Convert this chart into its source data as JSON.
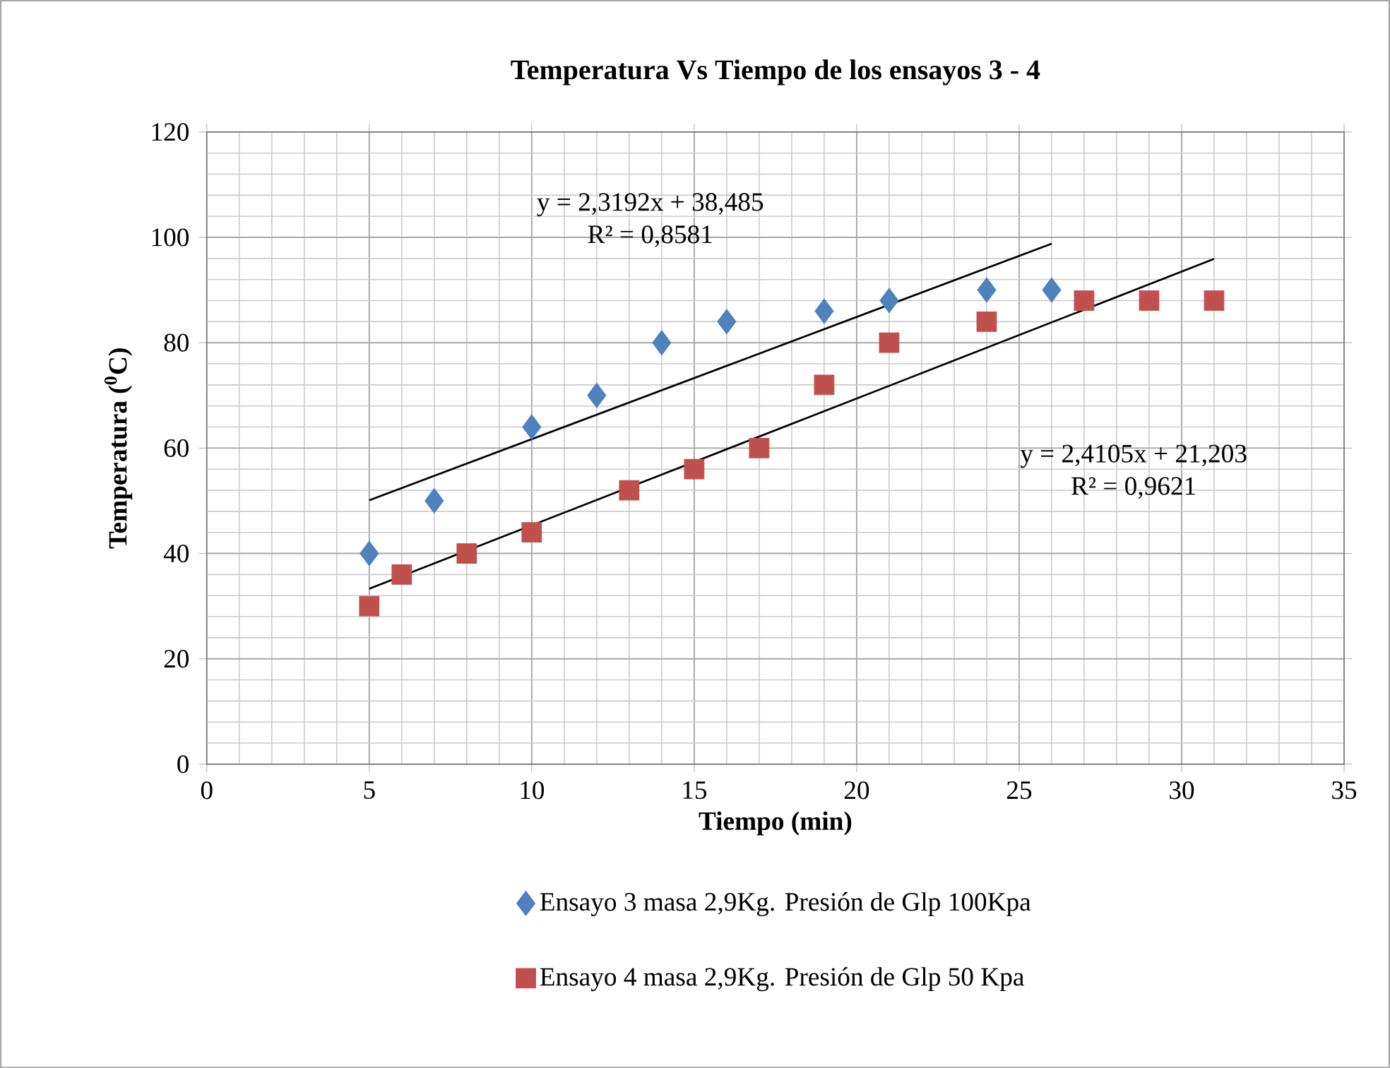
{
  "chart_data": {
    "type": "scatter",
    "title": "Temperatura Vs Tiempo de los ensayos 3 - 4",
    "xlabel": "Tiempo (min)",
    "ylabel": "Temperatura ($^{0}$C)",
    "xlim": [
      0,
      35
    ],
    "xticks": [
      0,
      5,
      10,
      15,
      20,
      25,
      30,
      35
    ],
    "ylim": [
      0,
      120
    ],
    "yticks": [
      0,
      20,
      40,
      60,
      80,
      100,
      120
    ],
    "grid": true,
    "legend": "bottom",
    "series": [
      {
        "name": "Ensayo 3 masa  2,9Kg. Presión de Glp 100Kpa",
        "color": "#4f81bd",
        "marker": "diamond",
        "x": [
          5,
          7,
          10,
          12,
          14,
          16,
          19,
          21,
          24,
          26
        ],
        "values": [
          40,
          50,
          64,
          70,
          80,
          84,
          86,
          88,
          90,
          90
        ]
      },
      {
        "name": "Ensayo 4 masa  2,9Kg. Presión de Glp 50 Kpa",
        "color": "#c0504d",
        "marker": "square",
        "x": [
          5,
          6,
          8,
          10,
          13,
          15,
          17,
          19,
          21,
          24,
          27,
          29,
          31
        ],
        "values": [
          30,
          36,
          40,
          44,
          52,
          56,
          60,
          72,
          80,
          84,
          88,
          88,
          88
        ]
      },
      {
        "type": "line",
        "color": "#000000",
        "marker": "none",
        "x": [
          5,
          26
        ],
        "values": [
          50.1,
          98.8
        ]
      },
      {
        "type": "line",
        "color": "#000000",
        "marker": "none",
        "x": [
          5,
          31
        ],
        "values": [
          33.3,
          95.9
        ]
      }
    ],
    "annotations": [
      "y = 2,3192x + 38,485",
      "R² = 0,8581",
      "y = 2,4105x + 21,203",
      "R² = 0,9621"
    ]
  }
}
